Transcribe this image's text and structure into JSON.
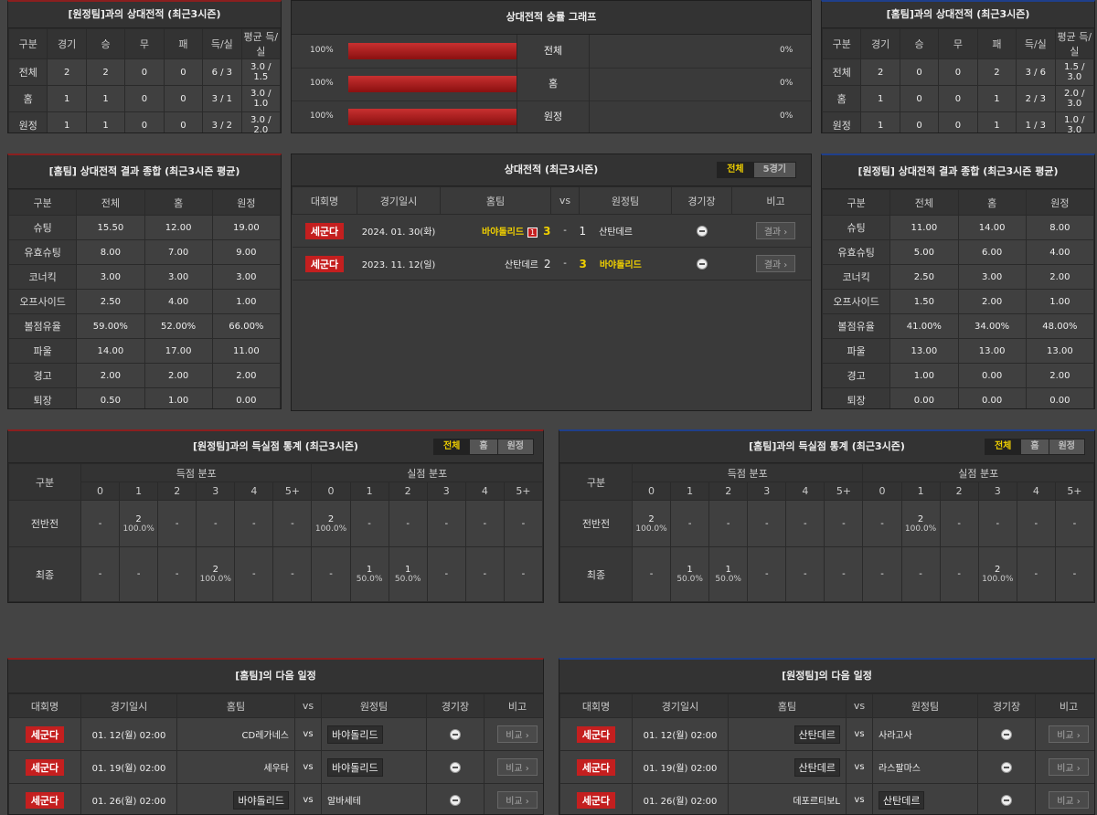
{
  "h2h_away": {
    "title": "[원정팀]과의 상대전적 (최근3시즌)",
    "headers": [
      "구분",
      "경기",
      "승",
      "무",
      "패",
      "득/실",
      "평균 득/실"
    ],
    "rows": [
      [
        "전체",
        "2",
        "2",
        "0",
        "0",
        "6 / 3",
        "3.0 / 1.5"
      ],
      [
        "홈",
        "1",
        "1",
        "0",
        "0",
        "3 / 1",
        "3.0 / 1.0"
      ],
      [
        "원정",
        "1",
        "1",
        "0",
        "0",
        "3 / 2",
        "3.0 / 2.0"
      ]
    ]
  },
  "h2h_home": {
    "title": "[홈팀]과의 상대전적 (최근3시즌)",
    "headers": [
      "구분",
      "경기",
      "승",
      "무",
      "패",
      "득/실",
      "평균 득/실"
    ],
    "rows": [
      [
        "전체",
        "2",
        "0",
        "0",
        "2",
        "3 / 6",
        "1.5 / 3.0"
      ],
      [
        "홈",
        "1",
        "0",
        "0",
        "1",
        "2 / 3",
        "2.0 / 3.0"
      ],
      [
        "원정",
        "1",
        "0",
        "0",
        "1",
        "1 / 3",
        "1.0 / 3.0"
      ]
    ]
  },
  "winrate": {
    "title": "상대전적 승률 그래프",
    "rows": [
      {
        "left_pct": "100%",
        "left_value": 100,
        "label": "전체",
        "right_pct": "0%",
        "right_value": 0
      },
      {
        "left_pct": "100%",
        "left_value": 100,
        "label": "홈",
        "right_pct": "0%",
        "right_value": 0
      },
      {
        "left_pct": "100%",
        "left_value": 100,
        "label": "원정",
        "right_pct": "0%",
        "right_value": 0
      }
    ]
  },
  "summary_home": {
    "title": "[홈팀] 상대전적 결과 종합 (최근3시즌 평균)",
    "headers": [
      "구분",
      "전체",
      "홈",
      "원정"
    ],
    "rows": [
      [
        "슈팅",
        "15.50",
        "12.00",
        "19.00"
      ],
      [
        "유효슈팅",
        "8.00",
        "7.00",
        "9.00"
      ],
      [
        "코너킥",
        "3.00",
        "3.00",
        "3.00"
      ],
      [
        "오프사이드",
        "2.50",
        "4.00",
        "1.00"
      ],
      [
        "볼점유율",
        "59.00%",
        "52.00%",
        "66.00%"
      ],
      [
        "파울",
        "14.00",
        "17.00",
        "11.00"
      ],
      [
        "경고",
        "2.00",
        "2.00",
        "2.00"
      ],
      [
        "퇴장",
        "0.50",
        "1.00",
        "0.00"
      ]
    ]
  },
  "summary_away": {
    "title": "[원정팀] 상대전적 결과 종합 (최근3시즌 평균)",
    "headers": [
      "구분",
      "전체",
      "홈",
      "원정"
    ],
    "rows": [
      [
        "슈팅",
        "11.00",
        "14.00",
        "8.00"
      ],
      [
        "유효슈팅",
        "5.00",
        "6.00",
        "4.00"
      ],
      [
        "코너킥",
        "2.50",
        "3.00",
        "2.00"
      ],
      [
        "오프사이드",
        "1.50",
        "2.00",
        "1.00"
      ],
      [
        "볼점유율",
        "41.00%",
        "34.00%",
        "48.00%"
      ],
      [
        "파울",
        "13.00",
        "13.00",
        "13.00"
      ],
      [
        "경고",
        "1.00",
        "0.00",
        "2.00"
      ],
      [
        "퇴장",
        "0.00",
        "0.00",
        "0.00"
      ]
    ]
  },
  "recent": {
    "title": "상대전적 (최근3시즌)",
    "tabs": [
      "전체",
      "5경기"
    ],
    "headers": {
      "league": "대회명",
      "date": "경기일시",
      "home": "홈팀",
      "vs": "vs",
      "away": "원정팀",
      "venue": "경기장",
      "note": "비고"
    },
    "matches": [
      {
        "league": "세군다",
        "date": "2024. 01. 30(화)",
        "home": "바야돌리드",
        "badge": "1",
        "hs": "3",
        "dash": "-",
        "as": "1",
        "away": "산탄데르",
        "btn": "결과"
      },
      {
        "league": "세군다",
        "date": "2023. 11. 12(일)",
        "home": "산탄데르",
        "hs": "2",
        "dash": "-",
        "as": "3",
        "away": "바야돌리드",
        "btn": "결과"
      }
    ]
  },
  "goals_away": {
    "title": "[원정팀]과의 득실점 통계 (최근3시즌)",
    "tabs": [
      "전체",
      "홈",
      "원정"
    ],
    "col_label": "구분",
    "scored": "득점 분포",
    "conceded": "실점 분포",
    "buckets": [
      "0",
      "1",
      "2",
      "3",
      "4",
      "5+"
    ],
    "rows": [
      {
        "label": "전반전",
        "cells": [
          [
            "-",
            ""
          ],
          [
            "2",
            "100.0%"
          ],
          [
            "-",
            ""
          ],
          [
            "-",
            ""
          ],
          [
            "-",
            ""
          ],
          [
            "-",
            ""
          ],
          [
            "2",
            "100.0%"
          ],
          [
            "-",
            ""
          ],
          [
            "-",
            ""
          ],
          [
            "-",
            ""
          ],
          [
            "-",
            ""
          ],
          [
            "-",
            ""
          ]
        ]
      },
      {
        "label": "최종",
        "cells": [
          [
            "-",
            ""
          ],
          [
            "-",
            ""
          ],
          [
            "-",
            ""
          ],
          [
            "2",
            "100.0%"
          ],
          [
            "-",
            ""
          ],
          [
            "-",
            ""
          ],
          [
            "-",
            ""
          ],
          [
            "1",
            "50.0%"
          ],
          [
            "1",
            "50.0%"
          ],
          [
            "-",
            ""
          ],
          [
            "-",
            ""
          ],
          [
            "-",
            ""
          ]
        ]
      }
    ]
  },
  "goals_home": {
    "title": "[홈팀]과의 득실점 통계 (최근3시즌)",
    "tabs": [
      "전체",
      "홈",
      "원정"
    ],
    "col_label": "구분",
    "scored": "득점 분포",
    "conceded": "실점 분포",
    "buckets": [
      "0",
      "1",
      "2",
      "3",
      "4",
      "5+"
    ],
    "rows": [
      {
        "label": "전반전",
        "cells": [
          [
            "2",
            "100.0%"
          ],
          [
            "-",
            ""
          ],
          [
            "-",
            ""
          ],
          [
            "-",
            ""
          ],
          [
            "-",
            ""
          ],
          [
            "-",
            ""
          ],
          [
            "-",
            ""
          ],
          [
            "2",
            "100.0%"
          ],
          [
            "-",
            ""
          ],
          [
            "-",
            ""
          ],
          [
            "-",
            ""
          ],
          [
            "-",
            ""
          ]
        ]
      },
      {
        "label": "최종",
        "cells": [
          [
            "-",
            ""
          ],
          [
            "1",
            "50.0%"
          ],
          [
            "1",
            "50.0%"
          ],
          [
            "-",
            ""
          ],
          [
            "-",
            ""
          ],
          [
            "-",
            ""
          ],
          [
            "-",
            ""
          ],
          [
            "-",
            ""
          ],
          [
            "-",
            ""
          ],
          [
            "2",
            "100.0%"
          ],
          [
            "-",
            ""
          ],
          [
            "-",
            ""
          ]
        ]
      }
    ]
  },
  "next_home": {
    "title": "[홈팀]의 다음 일정",
    "headers": {
      "league": "대회명",
      "date": "경기일시",
      "home": "홈팀",
      "vs": "vs",
      "away": "원정팀",
      "venue": "경기장",
      "note": "비고"
    },
    "matches": [
      {
        "league": "세군다",
        "date": "01. 12(월) 02:00",
        "home": "CD레가네스",
        "away": "바야돌리드",
        "boxed": "away",
        "btn": "비교"
      },
      {
        "league": "세군다",
        "date": "01. 19(월) 02:00",
        "home": "세우타",
        "away": "바야돌리드",
        "boxed": "away",
        "btn": "비교"
      },
      {
        "league": "세군다",
        "date": "01. 26(월) 02:00",
        "home": "바야돌리드",
        "away": "알바세테",
        "boxed": "home",
        "btn": "비교"
      }
    ]
  },
  "next_away": {
    "title": "[원정팀]의 다음 일정",
    "headers": {
      "league": "대회명",
      "date": "경기일시",
      "home": "홈팀",
      "vs": "vs",
      "away": "원정팀",
      "venue": "경기장",
      "note": "비고"
    },
    "matches": [
      {
        "league": "세군다",
        "date": "01. 12(월) 02:00",
        "home": "산탄데르",
        "away": "사라고사",
        "boxed": "home",
        "btn": "비교"
      },
      {
        "league": "세군다",
        "date": "01. 19(월) 02:00",
        "home": "산탄데르",
        "away": "라스팔마스",
        "boxed": "home",
        "btn": "비교"
      },
      {
        "league": "세군다",
        "date": "01. 26(월) 02:00",
        "home": "데포르티보L",
        "away": "산탄데르",
        "boxed": "away",
        "btn": "비교"
      }
    ]
  },
  "colors": {
    "accent_red": "#c41f1f",
    "highlight": "#f0d000",
    "away_border": "#8b1f1f",
    "home_border": "#1f3f8b"
  }
}
